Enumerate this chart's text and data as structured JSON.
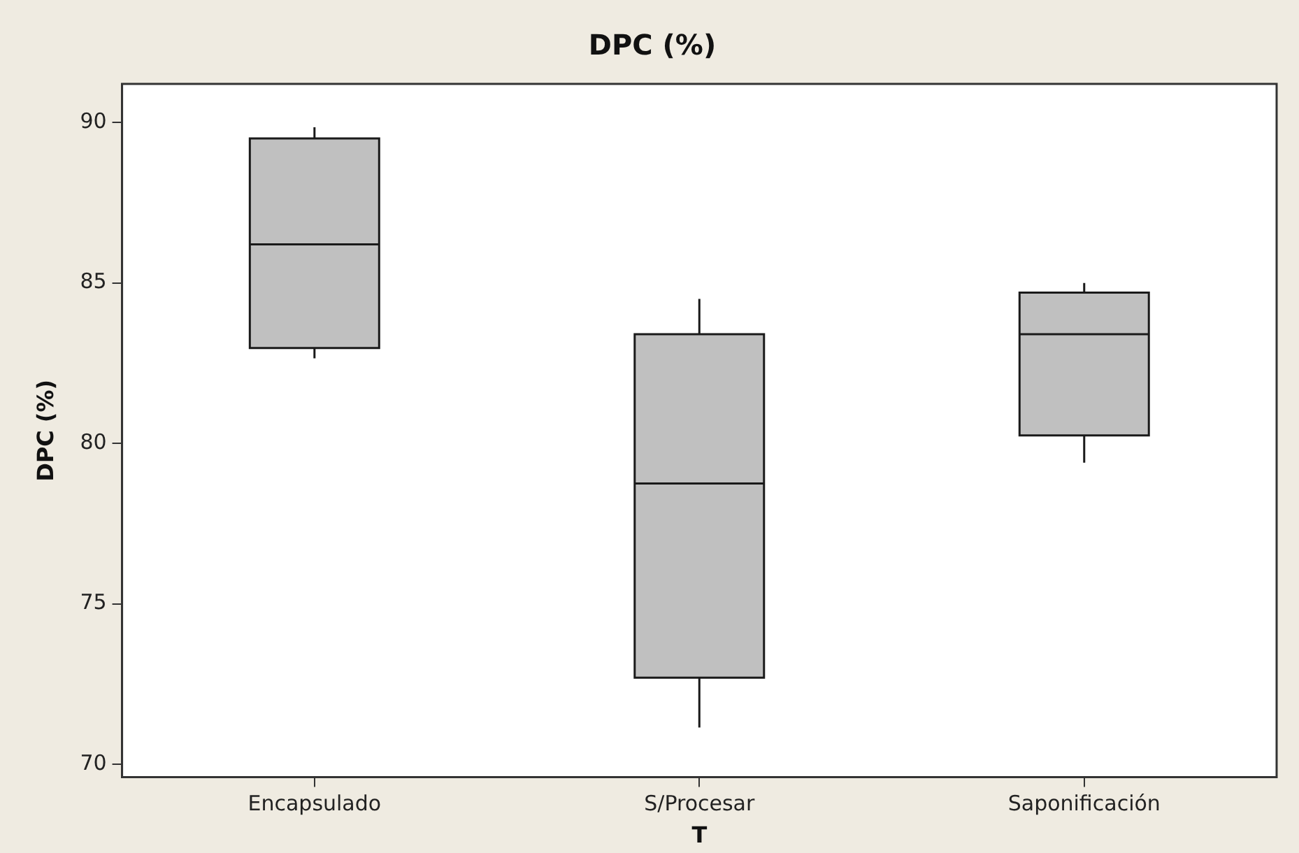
{
  "chart_data": {
    "type": "box",
    "title": "DPC (%)",
    "xlabel": "T",
    "ylabel": "DPC (%)",
    "categories": [
      "Encapsulado",
      "S/Procesar",
      "Saponificación"
    ],
    "color": "#c0c0c0",
    "boxes": [
      {
        "low": 82.65,
        "q1": 82.97,
        "median": 86.2,
        "q3": 89.5,
        "high": 89.85
      },
      {
        "low": 71.15,
        "q1": 72.7,
        "median": 78.75,
        "q3": 83.4,
        "high": 84.5
      },
      {
        "low": 79.4,
        "q1": 80.25,
        "median": 83.4,
        "q3": 84.7,
        "high": 85.0
      }
    ],
    "ylim": [
      69.6,
      91.2
    ],
    "yticks": [
      70,
      75,
      80,
      85,
      90
    ]
  }
}
